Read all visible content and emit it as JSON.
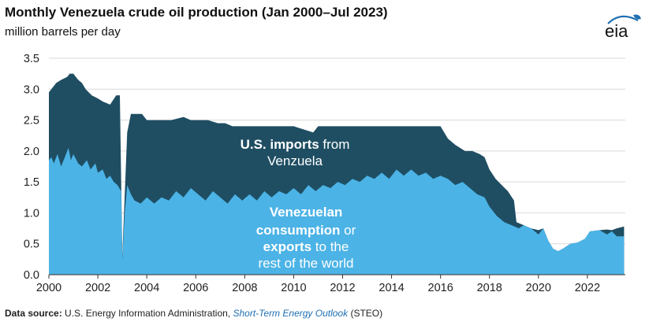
{
  "title": "Monthly Venezuela crude oil production (Jan 2000–Jul 2023)",
  "subtitle": "million barrels per day",
  "logo": "eia",
  "source": {
    "label": "Data source:",
    "agency": "U.S. Energy Information Administration,",
    "publication": "Short-Term Energy Outlook",
    "suffix": "(STEO)"
  },
  "annotations": {
    "imports": {
      "line1_bold": "U.S. imports",
      "line1_rest": " from",
      "line2": "Venzuela"
    },
    "consumption": {
      "line1": "Venezuelan",
      "line2_bold": "consumption",
      "line2_rest": " or",
      "line3_bold": "exports",
      "line3_rest": " to the",
      "line4": "rest of the world"
    }
  },
  "colors": {
    "total_production": "#1f4e63",
    "consumption_exports": "#4cb3e6",
    "grid": "#d9d9d9",
    "logo": "#1f6fb2",
    "text": "#111111"
  },
  "chart_data": {
    "type": "area",
    "title": "Monthly Venezuela crude oil production (Jan 2000–Jul 2023)",
    "ylabel": "million barrels per day",
    "xlim": [
      2000,
      2023.55
    ],
    "ylim": [
      0,
      3.5
    ],
    "yticks": [
      "0.0",
      "0.5",
      "1.0",
      "1.5",
      "2.0",
      "2.5",
      "3.0",
      "3.5"
    ],
    "xticks": [
      "2000",
      "2002",
      "2004",
      "2006",
      "2008",
      "2010",
      "2012",
      "2014",
      "2016",
      "2018",
      "2020",
      "2022"
    ],
    "grid": "horizontal",
    "series": [
      {
        "name": "U.S. imports from Venzuela",
        "role": "total production (top band = U.S. imports)",
        "points": [
          [
            2000.0,
            2.95
          ],
          [
            2000.1,
            3.0
          ],
          [
            2000.3,
            3.1
          ],
          [
            2000.5,
            3.15
          ],
          [
            2000.75,
            3.2
          ],
          [
            2000.85,
            3.25
          ],
          [
            2001.0,
            3.25
          ],
          [
            2001.2,
            3.15
          ],
          [
            2001.35,
            3.1
          ],
          [
            2001.5,
            3.0
          ],
          [
            2001.75,
            2.9
          ],
          [
            2002.0,
            2.85
          ],
          [
            2002.2,
            2.8
          ],
          [
            2002.5,
            2.75
          ],
          [
            2002.75,
            2.9
          ],
          [
            2002.9,
            2.9
          ],
          [
            2003.0,
            0.3
          ],
          [
            2003.1,
            1.3
          ],
          [
            2003.2,
            2.3
          ],
          [
            2003.35,
            2.6
          ],
          [
            2003.5,
            2.6
          ],
          [
            2003.8,
            2.6
          ],
          [
            2004.0,
            2.5
          ],
          [
            2005.0,
            2.5
          ],
          [
            2005.5,
            2.55
          ],
          [
            2005.8,
            2.5
          ],
          [
            2006.0,
            2.5
          ],
          [
            2006.5,
            2.5
          ],
          [
            2006.9,
            2.45
          ],
          [
            2007.2,
            2.45
          ],
          [
            2007.5,
            2.4
          ],
          [
            2008.0,
            2.4
          ],
          [
            2009.0,
            2.4
          ],
          [
            2010.0,
            2.4
          ],
          [
            2010.8,
            2.3
          ],
          [
            2011.0,
            2.4
          ],
          [
            2012.0,
            2.4
          ],
          [
            2013.0,
            2.4
          ],
          [
            2014.0,
            2.4
          ],
          [
            2015.0,
            2.4
          ],
          [
            2016.0,
            2.4
          ],
          [
            2016.3,
            2.2
          ],
          [
            2016.6,
            2.1
          ],
          [
            2017.0,
            2.0
          ],
          [
            2017.3,
            2.0
          ],
          [
            2017.6,
            1.95
          ],
          [
            2017.8,
            1.9
          ],
          [
            2017.9,
            1.8
          ],
          [
            2018.0,
            1.7
          ],
          [
            2018.25,
            1.55
          ],
          [
            2018.5,
            1.45
          ],
          [
            2018.75,
            1.35
          ],
          [
            2019.0,
            1.2
          ],
          [
            2019.1,
            0.85
          ],
          [
            2019.4,
            0.8
          ],
          [
            2019.7,
            0.75
          ],
          [
            2020.0,
            0.72
          ],
          [
            2020.2,
            0.75
          ],
          [
            2020.4,
            0.55
          ],
          [
            2020.6,
            0.42
          ],
          [
            2020.8,
            0.38
          ],
          [
            2021.0,
            0.42
          ],
          [
            2021.3,
            0.5
          ],
          [
            2021.6,
            0.52
          ],
          [
            2021.9,
            0.58
          ],
          [
            2022.1,
            0.7
          ],
          [
            2022.5,
            0.72
          ],
          [
            2022.8,
            0.73
          ],
          [
            2023.0,
            0.72
          ],
          [
            2023.2,
            0.75
          ],
          [
            2023.5,
            0.78
          ]
        ]
      },
      {
        "name": "Venezuelan consumption or exports to the rest of the world",
        "role": "lower band",
        "points": [
          [
            2000.0,
            1.85
          ],
          [
            2000.1,
            1.9
          ],
          [
            2000.2,
            1.8
          ],
          [
            2000.35,
            1.95
          ],
          [
            2000.5,
            1.75
          ],
          [
            2000.65,
            1.9
          ],
          [
            2000.8,
            2.05
          ],
          [
            2000.9,
            1.85
          ],
          [
            2001.0,
            1.95
          ],
          [
            2001.2,
            1.8
          ],
          [
            2001.35,
            1.75
          ],
          [
            2001.55,
            1.85
          ],
          [
            2001.7,
            1.7
          ],
          [
            2001.9,
            1.8
          ],
          [
            2002.0,
            1.65
          ],
          [
            2002.2,
            1.7
          ],
          [
            2002.35,
            1.55
          ],
          [
            2002.5,
            1.6
          ],
          [
            2002.65,
            1.5
          ],
          [
            2002.8,
            1.45
          ],
          [
            2002.95,
            1.35
          ],
          [
            2003.0,
            0.25
          ],
          [
            2003.1,
            1.0
          ],
          [
            2003.2,
            1.45
          ],
          [
            2003.35,
            1.3
          ],
          [
            2003.5,
            1.2
          ],
          [
            2003.75,
            1.15
          ],
          [
            2004.0,
            1.25
          ],
          [
            2004.3,
            1.15
          ],
          [
            2004.6,
            1.25
          ],
          [
            2004.9,
            1.2
          ],
          [
            2005.2,
            1.35
          ],
          [
            2005.5,
            1.25
          ],
          [
            2005.8,
            1.4
          ],
          [
            2006.1,
            1.3
          ],
          [
            2006.4,
            1.2
          ],
          [
            2006.7,
            1.35
          ],
          [
            2007.0,
            1.25
          ],
          [
            2007.3,
            1.15
          ],
          [
            2007.6,
            1.3
          ],
          [
            2007.9,
            1.2
          ],
          [
            2008.2,
            1.3
          ],
          [
            2008.5,
            1.2
          ],
          [
            2008.8,
            1.35
          ],
          [
            2009.1,
            1.25
          ],
          [
            2009.4,
            1.35
          ],
          [
            2009.7,
            1.3
          ],
          [
            2010.0,
            1.4
          ],
          [
            2010.3,
            1.3
          ],
          [
            2010.6,
            1.45
          ],
          [
            2010.9,
            1.35
          ],
          [
            2011.2,
            1.45
          ],
          [
            2011.5,
            1.4
          ],
          [
            2011.8,
            1.5
          ],
          [
            2012.1,
            1.45
          ],
          [
            2012.4,
            1.55
          ],
          [
            2012.7,
            1.5
          ],
          [
            2013.0,
            1.6
          ],
          [
            2013.3,
            1.55
          ],
          [
            2013.6,
            1.65
          ],
          [
            2013.9,
            1.55
          ],
          [
            2014.2,
            1.7
          ],
          [
            2014.5,
            1.6
          ],
          [
            2014.8,
            1.7
          ],
          [
            2015.1,
            1.6
          ],
          [
            2015.4,
            1.65
          ],
          [
            2015.7,
            1.55
          ],
          [
            2016.0,
            1.6
          ],
          [
            2016.3,
            1.55
          ],
          [
            2016.6,
            1.45
          ],
          [
            2016.9,
            1.5
          ],
          [
            2017.2,
            1.4
          ],
          [
            2017.5,
            1.3
          ],
          [
            2017.8,
            1.25
          ],
          [
            2018.0,
            1.1
          ],
          [
            2018.3,
            0.95
          ],
          [
            2018.6,
            0.85
          ],
          [
            2018.9,
            0.8
          ],
          [
            2019.2,
            0.75
          ],
          [
            2019.4,
            0.8
          ],
          [
            2019.7,
            0.75
          ],
          [
            2020.0,
            0.65
          ],
          [
            2020.2,
            0.75
          ],
          [
            2020.4,
            0.55
          ],
          [
            2020.6,
            0.42
          ],
          [
            2020.8,
            0.38
          ],
          [
            2021.0,
            0.42
          ],
          [
            2021.3,
            0.5
          ],
          [
            2021.6,
            0.52
          ],
          [
            2021.9,
            0.58
          ],
          [
            2022.1,
            0.7
          ],
          [
            2022.5,
            0.72
          ],
          [
            2022.8,
            0.65
          ],
          [
            2023.0,
            0.7
          ],
          [
            2023.2,
            0.62
          ],
          [
            2023.5,
            0.62
          ]
        ]
      }
    ]
  }
}
